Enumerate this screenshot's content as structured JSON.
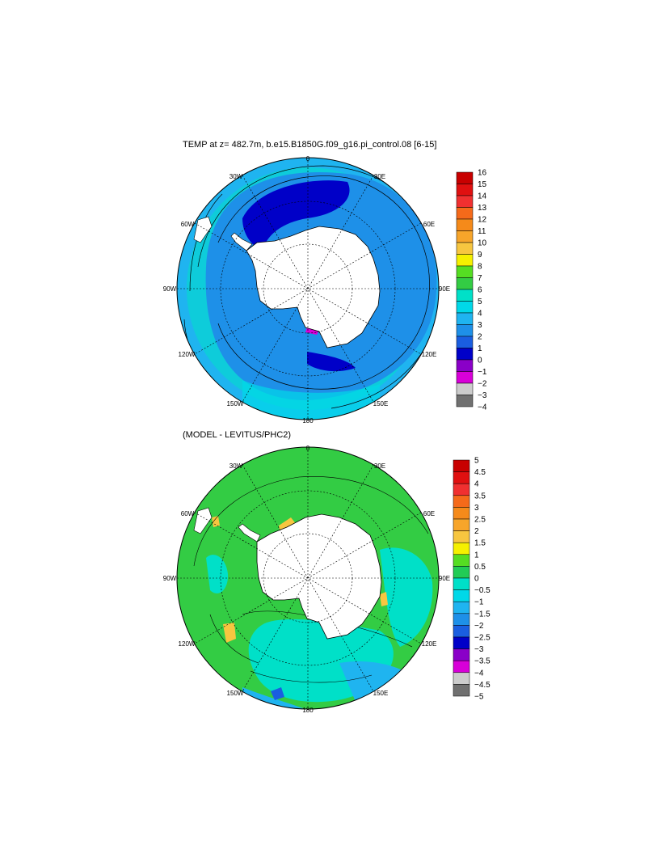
{
  "panel1": {
    "title": "TEMP at z= 482.7m, b.e15.B1850G.f09_g16.pi_control.08 [6-15]",
    "colorbar": {
      "levels": [
        "16",
        "15",
        "14",
        "13",
        "12",
        "11",
        "10",
        "9",
        "8",
        "7",
        "6",
        "5",
        "4",
        "3",
        "2",
        "1",
        "0",
        "−1",
        "−2",
        "−3",
        "−4"
      ],
      "colors": [
        "#c80000",
        "#e01010",
        "#f03030",
        "#f56a1a",
        "#f58a1a",
        "#f7a52a",
        "#f7c640",
        "#f5f000",
        "#55dd22",
        "#33cc44",
        "#00e0c8",
        "#00d8e8",
        "#1fb4f0",
        "#1e90e8",
        "#1a5ee0",
        "#0000c8",
        "#8a00c8",
        "#d800d8",
        "#cccccc",
        "#707070"
      ]
    }
  },
  "panel2": {
    "title": "(MODEL - LEVITUS/PHC2)",
    "colorbar": {
      "levels": [
        "5",
        "4.5",
        "4",
        "3.5",
        "3",
        "2.5",
        "2",
        "1.5",
        "1",
        "0.5",
        "0",
        "−0.5",
        "−1",
        "−1.5",
        "−2",
        "−2.5",
        "−3",
        "−3.5",
        "−4",
        "−4.5",
        "−5"
      ],
      "colors": [
        "#c80000",
        "#e01010",
        "#f03030",
        "#f56a1a",
        "#f58a1a",
        "#f7a52a",
        "#f7c640",
        "#f5f000",
        "#55dd22",
        "#22cc55",
        "#00e0c8",
        "#00d8e8",
        "#1fb4f0",
        "#1e90e8",
        "#1a5ee0",
        "#0000c8",
        "#8a00c8",
        "#d800d8",
        "#cccccc",
        "#707070"
      ]
    }
  },
  "longitude_labels": [
    "0",
    "30E",
    "60E",
    "90E",
    "120E",
    "150E",
    "180",
    "150W",
    "120W",
    "90W",
    "60W",
    "30W"
  ]
}
